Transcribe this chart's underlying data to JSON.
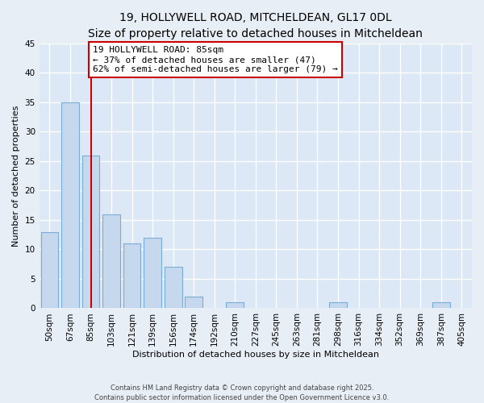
{
  "title": "19, HOLLYWELL ROAD, MITCHELDEAN, GL17 0DL",
  "subtitle": "Size of property relative to detached houses in Mitcheldean",
  "xlabel": "Distribution of detached houses by size in Mitcheldean",
  "ylabel": "Number of detached properties",
  "bar_labels": [
    "50sqm",
    "67sqm",
    "85sqm",
    "103sqm",
    "121sqm",
    "139sqm",
    "156sqm",
    "174sqm",
    "192sqm",
    "210sqm",
    "227sqm",
    "245sqm",
    "263sqm",
    "281sqm",
    "298sqm",
    "316sqm",
    "334sqm",
    "352sqm",
    "369sqm",
    "387sqm",
    "405sqm"
  ],
  "bar_values": [
    13,
    35,
    26,
    16,
    11,
    12,
    7,
    2,
    0,
    1,
    0,
    0,
    0,
    0,
    1,
    0,
    0,
    0,
    0,
    1,
    0
  ],
  "bar_color": "#c5d8ed",
  "bar_edge_color": "#7aadd4",
  "vline_x_index": 2,
  "vline_color": "#cc0000",
  "annotation_line1": "19 HOLLYWELL ROAD: 85sqm",
  "annotation_line2": "← 37% of detached houses are smaller (47)",
  "annotation_line3": "62% of semi-detached houses are larger (79) →",
  "annotation_box_color": "#ffffff",
  "annotation_box_edge": "#cc0000",
  "ylim": [
    0,
    45
  ],
  "yticks": [
    0,
    5,
    10,
    15,
    20,
    25,
    30,
    35,
    40,
    45
  ],
  "footer_line1": "Contains HM Land Registry data © Crown copyright and database right 2025.",
  "footer_line2": "Contains public sector information licensed under the Open Government Licence v3.0.",
  "bg_color": "#e8eef5",
  "plot_bg_color": "#dce8f5",
  "title_fontsize": 10,
  "subtitle_fontsize": 9,
  "axis_label_fontsize": 8,
  "tick_fontsize": 7.5,
  "annotation_fontsize": 8,
  "footer_fontsize": 6
}
